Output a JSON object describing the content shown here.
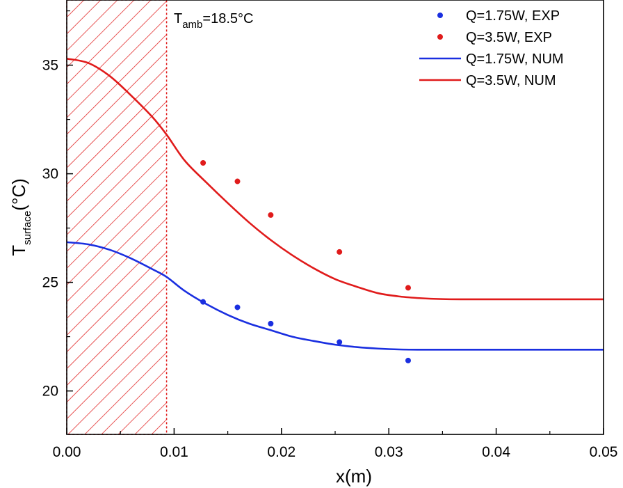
{
  "chart_data": {
    "type": "scatter",
    "xlabel": "x(m)",
    "ylabel": {
      "main": "T",
      "sub": "surface",
      "unit": "(°C)"
    },
    "xlim": [
      0.0,
      0.05
    ],
    "ylim": [
      18,
      38
    ],
    "x_ticks": [
      0.0,
      0.01,
      0.02,
      0.03,
      0.04,
      0.05
    ],
    "x_tick_labels": [
      "0.00",
      "0.01",
      "0.02",
      "0.03",
      "0.04",
      "0.05"
    ],
    "y_ticks": [
      20,
      25,
      30,
      35
    ],
    "y_tick_labels": [
      "20",
      "25",
      "30",
      "35"
    ],
    "annotation": {
      "main": "T",
      "sub": "amb",
      "rest": "=18.5°C"
    },
    "heated_region": {
      "x_start": 0.0,
      "x_end": 0.0093,
      "pattern": "red-hatch"
    },
    "series": [
      {
        "name": "Q=1.75W, EXP",
        "kind": "points",
        "color": "#1a2fe0",
        "x": [
          0.0127,
          0.0159,
          0.019,
          0.0254,
          0.0318
        ],
        "y": [
          24.1,
          23.85,
          23.1,
          22.25,
          21.4
        ]
      },
      {
        "name": "Q=3.5W, EXP",
        "kind": "points",
        "color": "#e01b1b",
        "x": [
          0.0127,
          0.0159,
          0.019,
          0.0254,
          0.0318
        ],
        "y": [
          30.5,
          29.65,
          28.1,
          26.4,
          24.75
        ]
      },
      {
        "name": "Q=1.75W, NUM",
        "kind": "line",
        "color": "#1a2fe0",
        "x": [
          0.0,
          0.002,
          0.004,
          0.006,
          0.008,
          0.0093,
          0.011,
          0.013,
          0.015,
          0.017,
          0.019,
          0.021,
          0.023,
          0.025,
          0.027,
          0.029,
          0.031,
          0.033,
          0.035,
          0.04,
          0.045,
          0.05
        ],
        "y": [
          26.85,
          26.75,
          26.5,
          26.1,
          25.6,
          25.25,
          24.6,
          24.0,
          23.5,
          23.1,
          22.8,
          22.5,
          22.3,
          22.13,
          22.02,
          21.95,
          21.91,
          21.9,
          21.9,
          21.9,
          21.9,
          21.9
        ]
      },
      {
        "name": "Q=3.5W, NUM",
        "kind": "line",
        "color": "#e01b1b",
        "x": [
          0.0,
          0.002,
          0.004,
          0.006,
          0.008,
          0.0093,
          0.011,
          0.013,
          0.015,
          0.017,
          0.019,
          0.021,
          0.023,
          0.025,
          0.027,
          0.029,
          0.031,
          0.033,
          0.035,
          0.037,
          0.04,
          0.045,
          0.05
        ],
        "y": [
          35.3,
          35.1,
          34.5,
          33.6,
          32.6,
          31.8,
          30.6,
          29.6,
          28.65,
          27.75,
          26.95,
          26.25,
          25.65,
          25.15,
          24.8,
          24.5,
          24.35,
          24.27,
          24.23,
          24.22,
          24.22,
          24.22,
          24.22
        ]
      }
    ],
    "legend": {
      "position": "top-right"
    }
  }
}
